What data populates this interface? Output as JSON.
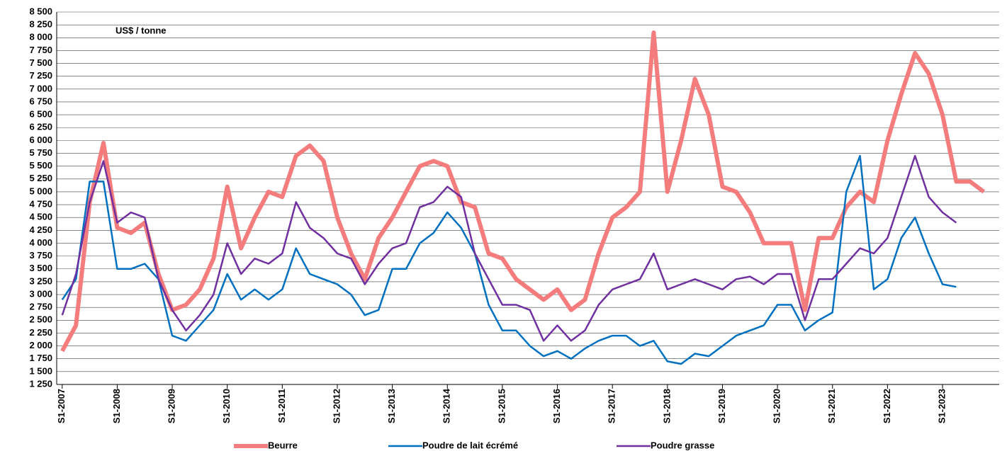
{
  "chart_data": {
    "type": "line",
    "annotation": "US$ / tonne",
    "x": [
      2007.0,
      2007.25,
      2007.5,
      2007.75,
      2008.0,
      2008.25,
      2008.5,
      2008.75,
      2009.0,
      2009.25,
      2009.5,
      2009.75,
      2010.0,
      2010.25,
      2010.5,
      2010.75,
      2011.0,
      2011.25,
      2011.5,
      2011.75,
      2012.0,
      2012.25,
      2012.5,
      2012.75,
      2013.0,
      2013.25,
      2013.5,
      2013.75,
      2014.0,
      2014.25,
      2014.5,
      2014.75,
      2015.0,
      2015.25,
      2015.5,
      2015.75,
      2016.0,
      2016.25,
      2016.5,
      2016.75,
      2017.0,
      2017.25,
      2017.5,
      2017.75,
      2018.0,
      2018.25,
      2018.5,
      2018.75,
      2019.0,
      2019.25,
      2019.5,
      2019.75,
      2020.0,
      2020.25,
      2020.5,
      2020.75,
      2021.0,
      2021.25,
      2021.5,
      2021.75,
      2022.0,
      2022.25,
      2022.5,
      2022.75,
      2023.0,
      2023.25,
      2023.5,
      2023.75
    ],
    "series": [
      {
        "name": "Beurre",
        "color": "#f47c7c",
        "width": 6,
        "values": [
          1900,
          2400,
          4800,
          5950,
          4300,
          4200,
          4400,
          3400,
          2700,
          2800,
          3100,
          3700,
          5100,
          3900,
          4500,
          5000,
          4900,
          5700,
          5900,
          5600,
          4500,
          3800,
          3300,
          4100,
          4500,
          5000,
          5500,
          5600,
          5500,
          4800,
          4700,
          3800,
          3700,
          3300,
          3100,
          2900,
          3100,
          2700,
          2900,
          3800,
          4500,
          4700,
          5000,
          8100,
          5000,
          6000,
          7200,
          6500,
          5100,
          5000,
          4600,
          4000,
          4000,
          4000,
          2700,
          4100,
          4100,
          4700,
          5000,
          4800,
          6000,
          6900,
          7700,
          7300,
          6500,
          5200,
          5200,
          5000
        ]
      },
      {
        "name": "Poudre de lait écrémé",
        "color": "#0070c0",
        "width": 2.5,
        "values": [
          2900,
          3300,
          5200,
          5200,
          3500,
          3500,
          3600,
          3300,
          2200,
          2100,
          2400,
          2700,
          3400,
          2900,
          3100,
          2900,
          3100,
          3900,
          3400,
          3300,
          3200,
          3000,
          2600,
          2700,
          3500,
          3500,
          4000,
          4200,
          4600,
          4300,
          3800,
          2800,
          2300,
          2300,
          2000,
          1800,
          1900,
          1750,
          1950,
          2100,
          2200,
          2200,
          2000,
          2100,
          1700,
          1650,
          1850,
          1800,
          2000,
          2200,
          2300,
          2400,
          2800,
          2800,
          2300,
          2500,
          2650,
          5000,
          5700,
          3100,
          3300,
          4100,
          4500,
          3800,
          3200,
          3150,
          null,
          null
        ]
      },
      {
        "name": "Poudre grasse",
        "color": "#7030a0",
        "width": 2.5,
        "values": [
          2600,
          3400,
          4800,
          5600,
          4400,
          4600,
          4500,
          3300,
          2700,
          2300,
          2600,
          3000,
          4000,
          3400,
          3700,
          3600,
          3800,
          4800,
          4300,
          4100,
          3800,
          3700,
          3200,
          3600,
          3900,
          4000,
          4700,
          4800,
          5100,
          4900,
          3800,
          3300,
          2800,
          2800,
          2700,
          2100,
          2400,
          2100,
          2300,
          2800,
          3100,
          3200,
          3300,
          3800,
          3100,
          3200,
          3300,
          3200,
          3100,
          3300,
          3350,
          3200,
          3400,
          3400,
          2500,
          3300,
          3300,
          3600,
          3900,
          3800,
          4100,
          4900,
          5700,
          4900,
          4600,
          4400,
          null,
          null
        ]
      }
    ],
    "xlim": [
      2006.9,
      2024.03
    ],
    "ylim": [
      1250,
      8500
    ],
    "xticks": [
      {
        "value": 2007,
        "label": "S1-2007"
      },
      {
        "value": 2008,
        "label": "S1-2008"
      },
      {
        "value": 2009,
        "label": "S1-2009"
      },
      {
        "value": 2010,
        "label": "S1-2010"
      },
      {
        "value": 2011,
        "label": "S1-2011"
      },
      {
        "value": 2012,
        "label": "S1-2012"
      },
      {
        "value": 2013,
        "label": "S1-2013"
      },
      {
        "value": 2014,
        "label": "S1-2014"
      },
      {
        "value": 2015,
        "label": "S1-2015"
      },
      {
        "value": 2016,
        "label": "S1-2016"
      },
      {
        "value": 2017,
        "label": "S1-2017"
      },
      {
        "value": 2018,
        "label": "S1-2018"
      },
      {
        "value": 2019,
        "label": "S1-2019"
      },
      {
        "value": 2020,
        "label": "S1-2020"
      },
      {
        "value": 2021,
        "label": "S1-2021"
      },
      {
        "value": 2022,
        "label": "S1-2022"
      },
      {
        "value": 2023,
        "label": "S1-2023"
      }
    ],
    "yticks": [
      {
        "value": 1250,
        "label": "1 250"
      },
      {
        "value": 1500,
        "label": "1 500"
      },
      {
        "value": 1750,
        "label": "1 750"
      },
      {
        "value": 2000,
        "label": "2 000"
      },
      {
        "value": 2250,
        "label": "2 250"
      },
      {
        "value": 2500,
        "label": "2 500"
      },
      {
        "value": 2750,
        "label": "2 750"
      },
      {
        "value": 3000,
        "label": "3 000"
      },
      {
        "value": 3250,
        "label": "3 250"
      },
      {
        "value": 3500,
        "label": "3 500"
      },
      {
        "value": 3750,
        "label": "3 750"
      },
      {
        "value": 4000,
        "label": "4 000"
      },
      {
        "value": 4250,
        "label": "4 250"
      },
      {
        "value": 4500,
        "label": "4 500"
      },
      {
        "value": 4750,
        "label": "4 750"
      },
      {
        "value": 5000,
        "label": "5 000"
      },
      {
        "value": 5250,
        "label": "5 250"
      },
      {
        "value": 5500,
        "label": "5 500"
      },
      {
        "value": 5750,
        "label": "5 750"
      },
      {
        "value": 6000,
        "label": "6 000"
      },
      {
        "value": 6250,
        "label": "6 250"
      },
      {
        "value": 6500,
        "label": "6 500"
      },
      {
        "value": 6750,
        "label": "6 750"
      },
      {
        "value": 7000,
        "label": "7 000"
      },
      {
        "value": 7250,
        "label": "7 250"
      },
      {
        "value": 7500,
        "label": "7 500"
      },
      {
        "value": 7750,
        "label": "7 750"
      },
      {
        "value": 8000,
        "label": "8 000"
      },
      {
        "value": 8250,
        "label": "8 250"
      },
      {
        "value": 8500,
        "label": "8 500"
      }
    ],
    "grid": true,
    "legend": "bottom"
  }
}
